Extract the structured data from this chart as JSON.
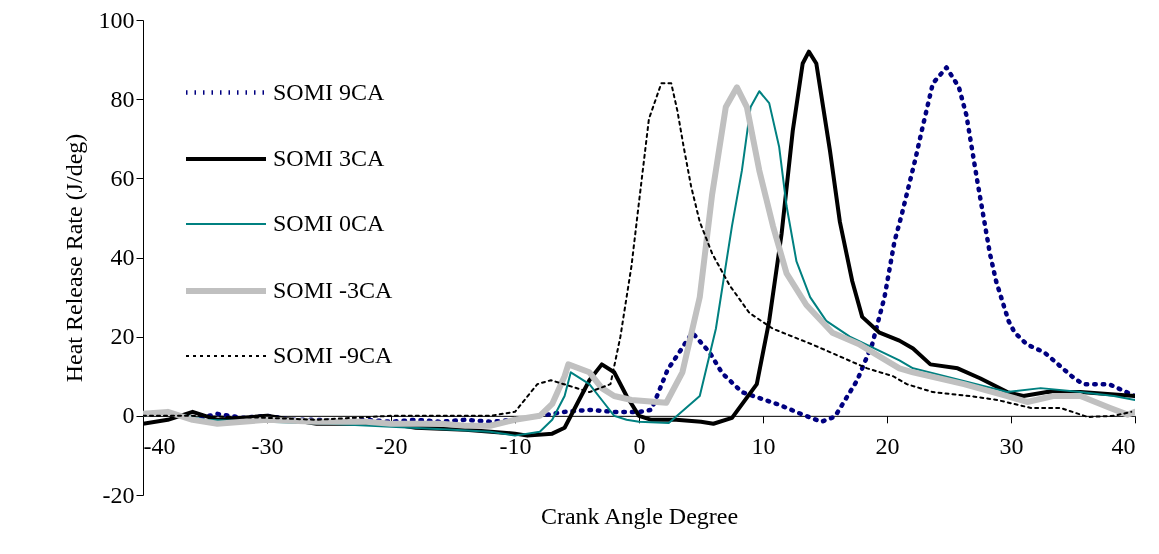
{
  "chart_data": {
    "type": "line",
    "xlabel": "Crank Angle Degree",
    "ylabel": "Heat Release Rate  (J/deg)",
    "xlim": [
      -40,
      40
    ],
    "ylim": [
      -20,
      100
    ],
    "xticks": [
      -40,
      -30,
      -20,
      -10,
      0,
      10,
      20,
      30,
      40
    ],
    "yticks": [
      -20,
      0,
      20,
      40,
      60,
      80,
      100
    ],
    "grid": false,
    "legend": "top left",
    "series": [
      {
        "name": "SOMI 9CA",
        "color": "#000080",
        "line_style": "dotted",
        "x": [
          -40,
          -38,
          -36,
          -34,
          -32,
          -30,
          -28,
          -26,
          -24,
          -22,
          -20,
          -18,
          -16,
          -14,
          -12,
          -10,
          -8,
          -6,
          -4,
          -2,
          0,
          1,
          2.3,
          4.3,
          5.7,
          6.7,
          8.3,
          11.3,
          13.2,
          14.7,
          15.8,
          17.6,
          18.8,
          19.8,
          20.6,
          21.2,
          22.3,
          22.8,
          23.7,
          24.8,
          25.8,
          26.4,
          27.3,
          27.8,
          28.3,
          28.8,
          29.4,
          29.8,
          30.3,
          31.3,
          32.7,
          33.8,
          34.9,
          35.8,
          37.9,
          39.3,
          40
        ],
        "values": [
          0.5,
          1,
          -1,
          0.5,
          -0.5,
          0,
          -1,
          -1,
          -1.5,
          -1,
          -1.5,
          -1,
          -1.5,
          -1,
          -1.5,
          -1,
          0,
          1,
          1.5,
          1,
          1,
          1.5,
          11.6,
          21,
          16,
          10.8,
          6,
          2.8,
          0.3,
          -1.5,
          -0.2,
          9,
          18,
          30,
          44,
          51,
          65,
          72,
          84,
          88,
          83,
          76,
          59,
          50,
          41,
          34,
          28,
          24,
          21,
          18,
          16,
          13,
          10,
          8,
          8,
          6,
          5
        ]
      },
      {
        "name": "SOMI 3CA",
        "color": "#000000",
        "line_style": "solid",
        "x": [
          -40,
          -38,
          -36,
          -34,
          -30,
          -26,
          -20,
          -18,
          -14,
          -10,
          -9,
          -7,
          -6,
          -5,
          -4,
          -3,
          -2,
          -1,
          0,
          1,
          3,
          5,
          6,
          7.5,
          9.5,
          10.5,
          11.5,
          12.4,
          13.2,
          13.7,
          14.3,
          15.4,
          16.2,
          17.2,
          18,
          19.4,
          21,
          22.1,
          23.5,
          25.7,
          27.5,
          29.7,
          31,
          32.9,
          35.6,
          40
        ],
        "values": [
          -2,
          -1,
          1,
          -1,
          0,
          -2,
          -2,
          -3,
          -3.5,
          -4.5,
          -5,
          -4.5,
          -3,
          3,
          9,
          13,
          11,
          5,
          0,
          -1,
          -1,
          -1.5,
          -2,
          -0.5,
          8,
          24,
          46,
          72,
          89,
          92,
          89,
          67,
          49,
          34,
          25,
          21,
          19,
          17,
          13,
          12,
          9.5,
          6,
          5,
          6,
          6,
          5
        ]
      },
      {
        "name": "SOMI 0CA",
        "color": "#008080",
        "line_style": "solid",
        "x": [
          -40,
          -38,
          -35,
          -30,
          -25,
          -15,
          -12,
          -10,
          -8,
          -7,
          -6,
          -5.5,
          -4,
          -3,
          -2,
          -1,
          0,
          2.4,
          4.9,
          6.2,
          7.5,
          8.3,
          9,
          9.7,
          10.5,
          11.3,
          11.9,
          12.7,
          13.8,
          15.1,
          17,
          21,
          22.1,
          29.7,
          32.4,
          35.6,
          38.3,
          40
        ],
        "values": [
          0,
          1,
          -1,
          -1.5,
          -2,
          -3.5,
          -4,
          -5,
          -4,
          -1,
          5,
          11,
          8,
          4,
          0,
          -1,
          -1.5,
          -1.8,
          5,
          22,
          48,
          62,
          78,
          82,
          79,
          68,
          53,
          39,
          30,
          24,
          20,
          14,
          12,
          6,
          7,
          6,
          5,
          4
        ]
      },
      {
        "name": "SOMI -3CA",
        "color": "#c0c0c0",
        "line_style": "solid",
        "x": [
          -40,
          -38,
          -36,
          -34,
          -30,
          -26,
          -22,
          -20,
          -16,
          -14,
          -12,
          -10,
          -8,
          -7,
          -6,
          -5.7,
          -4,
          -3,
          -2,
          -0.6,
          2.2,
          3.5,
          4.9,
          5.9,
          7,
          7.9,
          8.7,
          9.7,
          10.8,
          11.9,
          13.5,
          15.6,
          17.8,
          21,
          22.1,
          26.2,
          29.7,
          31.3,
          33.4,
          35.6,
          38,
          39.4,
          40
        ],
        "values": [
          0.5,
          1,
          -1,
          -2,
          -1,
          -1.5,
          -1.5,
          -2,
          -2,
          -2.5,
          -2.5,
          -1,
          0,
          3,
          10,
          13,
          11,
          7,
          5,
          4,
          3.3,
          11,
          30,
          56,
          78,
          83,
          78,
          62,
          48,
          36,
          28,
          21,
          18,
          12,
          11,
          8,
          5,
          3.5,
          5,
          5,
          2,
          0.3,
          1
        ]
      },
      {
        "name": "SOMI -9CA",
        "color": "#000000",
        "line_style": "dashed",
        "x": [
          -40,
          -36,
          -30,
          -26,
          -20,
          -15,
          -12,
          -10,
          -8.2,
          -7.1,
          -4,
          -2.3,
          -1.5,
          -0.6,
          0,
          0.8,
          1.8,
          2.6,
          3.1,
          3.6,
          4.2,
          4.9,
          5.9,
          7.3,
          8.9,
          10.8,
          14,
          18.4,
          20.5,
          21.6,
          23.7,
          26.7,
          28.9,
          31.6,
          34,
          36.2,
          38.3,
          39.7
        ],
        "values": [
          0,
          0,
          -0.5,
          -1,
          0,
          0,
          0,
          1,
          8,
          9,
          6,
          8,
          20,
          38,
          54,
          75,
          84,
          84,
          77,
          68,
          58,
          49,
          41,
          33,
          26,
          22,
          18,
          12,
          10,
          8,
          6,
          5,
          4,
          2,
          2,
          -0.3,
          0,
          1
        ]
      }
    ]
  }
}
